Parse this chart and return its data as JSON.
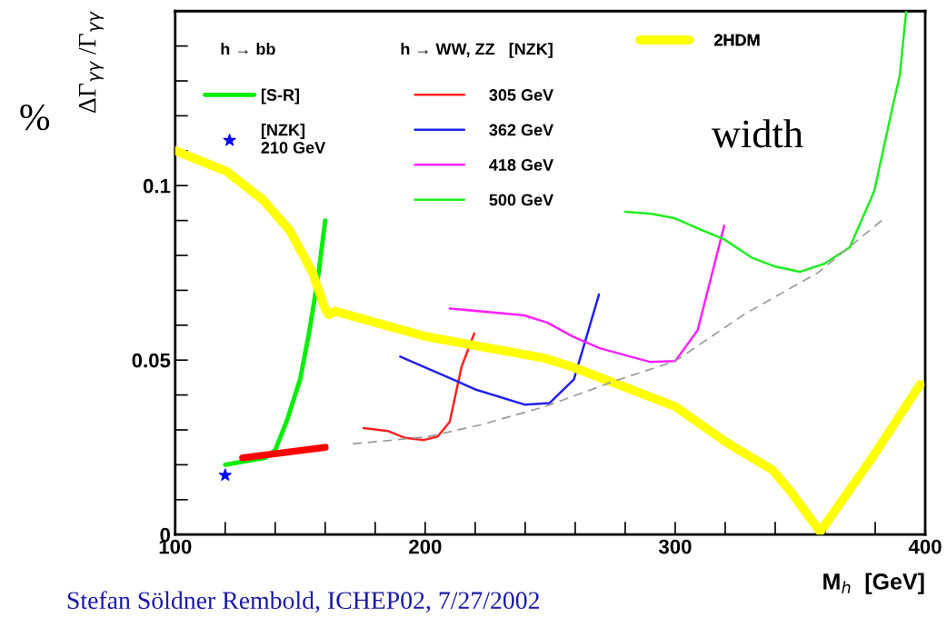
{
  "chart_data": {
    "type": "line",
    "xlabel": "M$_{h}$  [GeV]",
    "ylabel": "ΔΓ$_{γγ}$ /Γ$_{γγ}$",
    "xlim": [
      100,
      400
    ],
    "ylim": [
      0,
      0.15
    ],
    "xticks": [
      100,
      {
        "value": 120,
        "label": null
      },
      {
        "value": 140,
        "label": null
      },
      {
        "value": 160,
        "label": null
      },
      {
        "value": 180,
        "label": null
      },
      200,
      {
        "value": 220,
        "label": null
      },
      {
        "value": 240,
        "label": null
      },
      {
        "value": 260,
        "label": null
      },
      {
        "value": 280,
        "label": null
      },
      300,
      {
        "value": 320,
        "label": null
      },
      {
        "value": 340,
        "label": null
      },
      {
        "value": 360,
        "label": null
      },
      {
        "value": 380,
        "label": null
      },
      400
    ],
    "yticks": [
      0,
      {
        "value": 0.01,
        "label": null
      },
      {
        "value": 0.02,
        "label": null
      },
      {
        "value": 0.03,
        "label": null
      },
      {
        "value": 0.04,
        "label": null
      },
      0.05,
      {
        "value": 0.06,
        "label": null
      },
      {
        "value": 0.07,
        "label": null
      },
      {
        "value": 0.08,
        "label": null
      },
      {
        "value": 0.09,
        "label": null
      },
      0.1,
      {
        "value": 0.11,
        "label": null
      },
      {
        "value": 0.12,
        "label": null
      },
      {
        "value": 0.13,
        "label": null
      },
      {
        "value": 0.14,
        "label": null
      }
    ],
    "grid": false,
    "legend": "top",
    "annotations": [
      "h → bb",
      "h → WW, ZZ   [NZK]",
      "%",
      "width",
      "Stefan Söldner Rembold, ICHEP02, 7/27/2002"
    ],
    "series": [
      {
        "name": "[S-R]",
        "color": "#00ee00",
        "x": [
          120,
          136,
          140,
          145,
          150,
          153.5,
          157,
          160
        ],
        "values": [
          0.02,
          0.022,
          0.0242,
          0.0333,
          0.0446,
          0.0576,
          0.073,
          0.09
        ]
      },
      {
        "name": "[NZK]\n210 GeV",
        "type": "scatter",
        "marker": "star",
        "color": "#0000ff",
        "x": [
          120
        ],
        "values": [
          0.017
        ]
      },
      {
        "name": "305 GeV",
        "color": "#ff2020",
        "x": [
          175.3,
          185,
          192,
          199.5,
          205,
          209.8,
          214.5,
          219.6
        ],
        "values": [
          0.0305,
          0.0297,
          0.0277,
          0.0271,
          0.0281,
          0.0323,
          0.048,
          0.0576
        ]
      },
      {
        "name": "362 GeV",
        "color": "#2020ee",
        "x": [
          190,
          211.6,
          220,
          240,
          249.8,
          259.5,
          269.5
        ],
        "values": [
          0.051,
          0.0443,
          0.0416,
          0.0372,
          0.0377,
          0.0445,
          0.0688
        ]
      },
      {
        "name": "418 GeV",
        "color": "#ff20ff",
        "x": [
          209.8,
          239.6,
          249,
          258.9,
          269.8,
          289.8,
          300,
          309,
          319.6
        ],
        "values": [
          0.0648,
          0.0628,
          0.0607,
          0.0568,
          0.0534,
          0.0495,
          0.0497,
          0.0586,
          0.0885
        ]
      },
      {
        "name": "500 GeV",
        "color": "#20ee20",
        "x": [
          280,
          290.5,
          300,
          309.8,
          319.6,
          330.5,
          340,
          349.8,
          359.6,
          369.8,
          379.6,
          387,
          389.8,
          392.4
        ],
        "values": [
          0.0925,
          0.0919,
          0.0906,
          0.0875,
          0.0846,
          0.0794,
          0.0768,
          0.0753,
          0.0776,
          0.0823,
          0.0984,
          0.1227,
          0.1315,
          0.15
        ]
      },
      {
        "name": "2HDM",
        "color": "#ffff00",
        "x": [
          100,
          120.7,
          135,
          146,
          155,
          160,
          161.5,
          164,
          200,
          248,
          259,
          300,
          320.7,
          338.9,
          346,
          358,
          377.8,
          398
        ],
        "values": [
          0.11,
          0.104,
          0.096,
          0.087,
          0.075,
          0.0646,
          0.063,
          0.064,
          0.0568,
          0.0505,
          0.048,
          0.0367,
          0.0263,
          0.0185,
          0.0125,
          0.0008,
          0.021,
          0.043
        ]
      },
      {
        "color": "#ff0000",
        "x": [
          127,
          160
        ],
        "values": [
          0.022,
          0.025
        ]
      },
      {
        "color": "#999999",
        "line_style": "dashed",
        "x": [
          171,
          200.7,
          222.5,
          248,
          277,
          300,
          328,
          357,
          383.6
        ],
        "values": [
          0.026,
          0.028,
          0.0315,
          0.0367,
          0.0443,
          0.0497,
          0.0633,
          0.075,
          0.0906
        ]
      }
    ]
  }
}
